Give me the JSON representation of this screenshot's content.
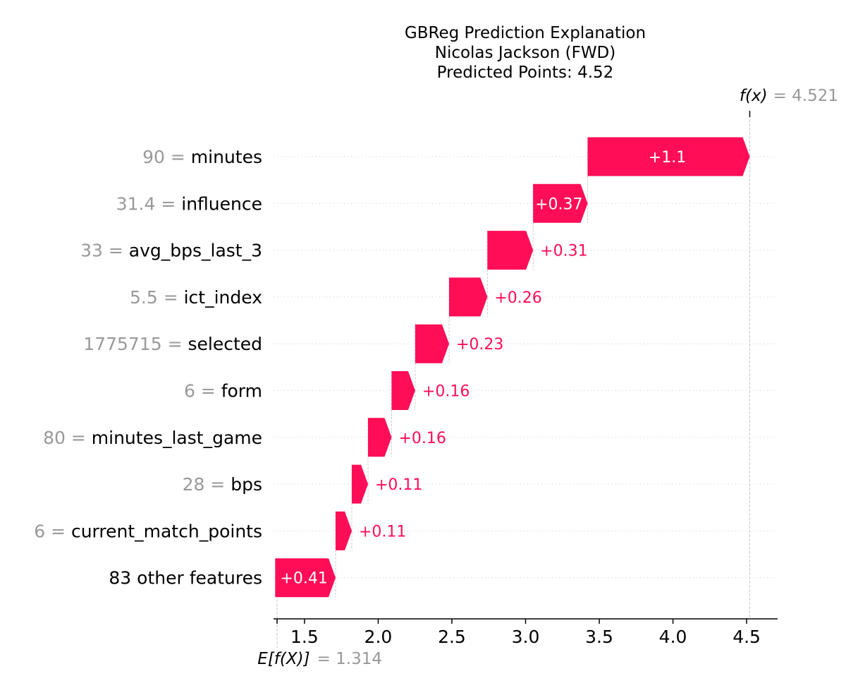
{
  "chart_data": {
    "type": "waterfall",
    "title_lines": [
      "GBReg Prediction Explanation",
      "Nicolas Jackson (FWD)",
      "Predicted Points: 4.52"
    ],
    "base_value": 1.314,
    "base_label": "E[f(X)]",
    "base_value_text": "= 1.314",
    "output_value": 4.521,
    "output_label": "f(x)",
    "output_value_text": "= 4.521",
    "features": [
      {
        "value": "90",
        "name": "minutes",
        "contribution": 1.1,
        "label": "+1.1"
      },
      {
        "value": "31.4",
        "name": "influence",
        "contribution": 0.37,
        "label": "+0.37"
      },
      {
        "value": "33",
        "name": "avg_bps_last_3",
        "contribution": 0.31,
        "label": "+0.31"
      },
      {
        "value": "5.5",
        "name": "ict_index",
        "contribution": 0.26,
        "label": "+0.26"
      },
      {
        "value": "1775715",
        "name": "selected",
        "contribution": 0.23,
        "label": "+0.23"
      },
      {
        "value": "6",
        "name": "form",
        "contribution": 0.16,
        "label": "+0.16"
      },
      {
        "value": "80",
        "name": "minutes_last_game",
        "contribution": 0.16,
        "label": "+0.16"
      },
      {
        "value": "28",
        "name": "bps",
        "contribution": 0.11,
        "label": "+0.11"
      },
      {
        "value": "6",
        "name": "current_match_points",
        "contribution": 0.11,
        "label": "+0.11"
      },
      {
        "value": "",
        "name": "83 other features",
        "contribution": 0.41,
        "label": "+0.41"
      }
    ],
    "xticks": [
      1.5,
      2.0,
      2.5,
      3.0,
      3.5,
      4.0,
      4.5
    ],
    "xtick_labels": [
      "1.5",
      "2.0",
      "2.5",
      "3.0",
      "3.5",
      "4.0",
      "4.5"
    ],
    "xlim": [
      1.29,
      4.71
    ],
    "colors": {
      "positive": "#ff0d57",
      "neutral": "#999999",
      "text": "#000000"
    }
  }
}
